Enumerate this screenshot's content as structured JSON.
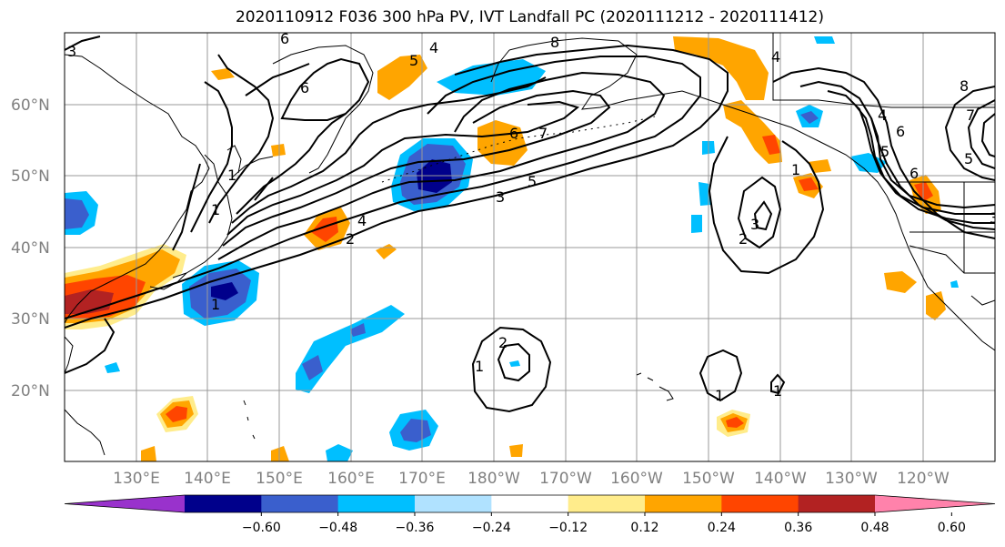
{
  "title": "2020110912 F036 300 hPa PV, IVT Landfall PC (2020111212 - 2020111412)",
  "lat_labels": [
    "60°N",
    "50°N",
    "40°N",
    "30°N",
    "20°N"
  ],
  "lon_labels": [
    "130°E",
    "140°E",
    "150°E",
    "160°E",
    "170°E",
    "180°W",
    "170°W",
    "160°W",
    "150°W",
    "140°W",
    "130°W",
    "120°W"
  ],
  "contour_labels": [
    "1",
    "2",
    "3",
    "4",
    "5",
    "6",
    "7",
    "8"
  ],
  "colorbar": {
    "ticks": [
      "−0.60",
      "−0.48",
      "−0.36",
      "−0.24",
      "−0.12",
      "0.12",
      "0.24",
      "0.36",
      "0.48",
      "0.60"
    ],
    "colors": [
      "#9932cc",
      "#00008b",
      "#3a5fcd",
      "#00bfff",
      "#b0e2ff",
      "#ffffff",
      "#ffec8b",
      "#ffa500",
      "#ff4500",
      "#b22222",
      "#ff82ab"
    ]
  },
  "palette": {
    "neg_strong": "#00008b",
    "neg_mid": "#3a5fcd",
    "neg": "#00bfff",
    "neg_weak": "#b0e2ff",
    "pos_weak": "#ffec8b",
    "pos": "#ffa500",
    "pos_mid": "#ff4500",
    "pos_strong": "#b22222"
  }
}
